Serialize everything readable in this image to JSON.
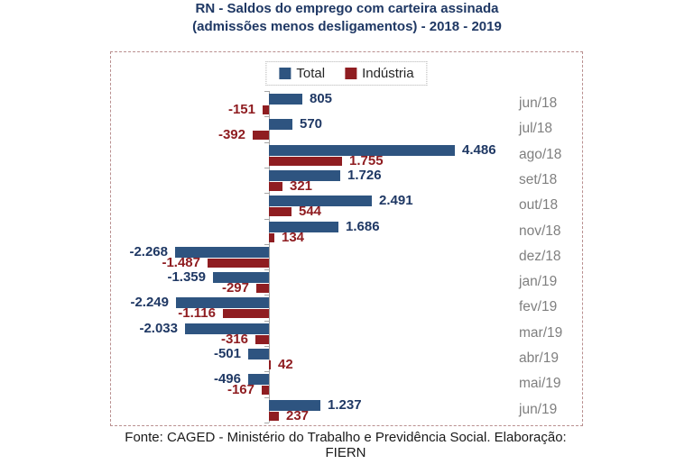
{
  "title": {
    "line1": "RN - Saldos do emprego com carteira assinada",
    "line2": "(admissões menos desligamentos) - 2018 - 2019"
  },
  "legend": {
    "items": [
      {
        "label": "Total",
        "color": "#2e5480"
      },
      {
        "label": "Indústria",
        "color": "#8f1d21"
      }
    ]
  },
  "footer": "Fonte: CAGED - Ministério do Trabalho e Previdência Social. Elaboração: FIERN",
  "colors": {
    "total": "#2e5480",
    "industria": "#8f1d21",
    "title": "#1f3864",
    "category_label": "#7f7f7f",
    "axis": "#a6a6a6",
    "box_border": "#b98f8f"
  },
  "chart_data": {
    "type": "bar",
    "orientation": "horizontal",
    "title": "RN - Saldos do emprego com carteira assinada (admissões menos desligamentos) - 2018 - 2019",
    "categories": [
      "jun/18",
      "jul/18",
      "ago/18",
      "set/18",
      "out/18",
      "nov/18",
      "dez/18",
      "jan/19",
      "fev/19",
      "mar/19",
      "abr/19",
      "mai/19",
      "jun/19"
    ],
    "series": [
      {
        "name": "Total",
        "color": "#2e5480",
        "values": [
          805,
          570,
          4486,
          1726,
          2491,
          1686,
          -2268,
          -1359,
          -2249,
          -2033,
          -501,
          -496,
          1237
        ],
        "labels": [
          "805",
          "570",
          "4.486",
          "1.726",
          "2.491",
          "1.686",
          "-2.268",
          "-1.359",
          "-2.249",
          "-2.033",
          "-501",
          "-496",
          "1.237"
        ]
      },
      {
        "name": "Indústria",
        "color": "#8f1d21",
        "values": [
          -151,
          -392,
          1755,
          321,
          544,
          134,
          -1487,
          -297,
          -1116,
          -316,
          42,
          -167,
          237
        ],
        "labels": [
          "-151",
          "-392",
          "1.755",
          "321",
          "544",
          "134",
          "-1.487",
          "-297",
          "-1.116",
          "-316",
          "42",
          "-167",
          "237"
        ]
      }
    ],
    "xlabel": "",
    "ylabel": "",
    "xlim": [
      -2500,
      4700
    ],
    "legend_position": "top-center",
    "grid": false
  }
}
